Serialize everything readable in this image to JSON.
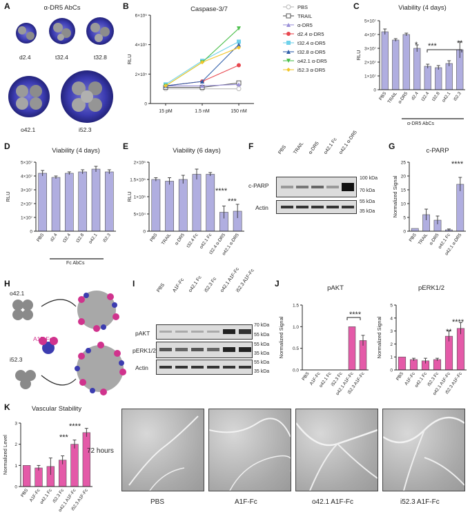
{
  "panels": {
    "A": {
      "letter": "A",
      "title": "α-DR5 AbCs",
      "labels": [
        "d2.4",
        "t32.4",
        "t32.8",
        "o42.1",
        "i52.3"
      ]
    },
    "B": {
      "letter": "B"
    },
    "C": {
      "letter": "C",
      "group_label": "α-DR5 AbCs",
      "sig_star1": "*",
      "sig_bracket": "***",
      "sig_last": "**"
    },
    "D": {
      "letter": "D",
      "group_label": "Fc AbCs"
    },
    "E": {
      "letter": "E",
      "sig1": "****",
      "sig2": "***"
    },
    "F": {
      "letter": "F",
      "lanes": [
        "PBS",
        "TRAIL",
        "α-DR5",
        "o42.1 Fc",
        "o42.1 α-DR5"
      ],
      "rows": [
        "c-PARP",
        "Actin"
      ],
      "markers": [
        "100 kDa",
        "70 kDa",
        "55 kDa",
        "35 kDa"
      ]
    },
    "G": {
      "letter": "G",
      "sig": "****"
    },
    "H": {
      "letter": "H",
      "labels": [
        "o42.1",
        "A1F-Fc",
        "i52.3"
      ]
    },
    "I": {
      "letter": "I",
      "lanes": [
        "PBS",
        "A1F-Fc",
        "o42.1 Fc",
        "i52.3 Fc",
        "o42.1 A1F-Fc",
        "i52.3 A1F-Fc"
      ],
      "rows": [
        "pAKT",
        "pERK1/2",
        "Actin"
      ],
      "markers": [
        "70 kDa",
        "55 kDa",
        "55 kDa",
        "35 kDa",
        "55 kDa",
        "35 kDa"
      ]
    },
    "J": {
      "letter": "J",
      "sig_akt": "****",
      "sig_erk1": "**",
      "sig_erk2": "****"
    },
    "K": {
      "letter": "K",
      "sig1": "***",
      "sig2": "****",
      "time_label": "72 hours",
      "images": [
        "PBS",
        "A1F-Fc",
        "o42.1 A1F-Fc",
        "i52.3 A1F-Fc"
      ]
    }
  },
  "colors": {
    "purple_bar": "#b0aee0",
    "pink_bar": "#e45aa8",
    "dark": "#222222"
  },
  "chart_data": [
    {
      "panel": "B",
      "type": "line",
      "title": "Caspase-3/7",
      "xlabel": "",
      "ylabel": "RLU",
      "categories": [
        "15 pM",
        "1.5 nM",
        "150 nM"
      ],
      "yticks": [
        "0",
        "2×10⁵",
        "4×10⁵",
        "6×10⁵"
      ],
      "ylim": [
        0,
        600000
      ],
      "series": [
        {
          "name": "PBS",
          "color": "#b9b9b9",
          "marker": "circle-open",
          "values": [
            100000,
            100000,
            100000
          ]
        },
        {
          "name": "TRAIL",
          "color": "#555555",
          "marker": "square-open",
          "values": [
            110000,
            110000,
            140000
          ]
        },
        {
          "name": "α-DR5",
          "color": "#9a90d8",
          "marker": "triangle",
          "values": [
            120000,
            120000,
            130000
          ]
        },
        {
          "name": "d2.4 α-DR5",
          "color": "#e8474f",
          "marker": "circle",
          "values": [
            120000,
            150000,
            260000
          ]
        },
        {
          "name": "t32.4 α-DR5",
          "color": "#6fd1ea",
          "marker": "square",
          "values": [
            130000,
            290000,
            420000
          ]
        },
        {
          "name": "t32.8 α-DR5",
          "color": "#2f5ea9",
          "marker": "triangle",
          "values": [
            120000,
            150000,
            400000
          ]
        },
        {
          "name": "o42.1 α-DR5",
          "color": "#4cc04c",
          "marker": "triangle-down",
          "values": [
            120000,
            280000,
            510000
          ]
        },
        {
          "name": "i52.3 α-DR5",
          "color": "#f2c62b",
          "marker": "diamond",
          "values": [
            120000,
            280000,
            380000
          ]
        }
      ]
    },
    {
      "panel": "C",
      "type": "bar",
      "title": "Viability (4 days)",
      "ylabel": "RLU",
      "categories": [
        "PBS",
        "TRAIL",
        "α-DR5",
        "d2.4",
        "t32.4",
        "t32.8",
        "o42.1",
        "i52.3"
      ],
      "values": [
        42000000.0,
        36000000.0,
        40000000.0,
        30000000.0,
        17000000.0,
        16000000.0,
        19000000.0,
        29000000.0
      ],
      "errors": [
        2000000.0,
        1000000.0,
        1000000.0,
        2500000.0,
        1500000.0,
        1500000.0,
        2000000.0,
        6000000.0
      ],
      "yticks": [
        "0",
        "1×10⁷",
        "2×10⁷",
        "3×10⁷",
        "4×10⁷",
        "5×10⁷"
      ],
      "ylim": [
        0,
        50000000.0
      ]
    },
    {
      "panel": "D",
      "type": "bar",
      "title": "Viability (4 days)",
      "ylabel": "RLU",
      "categories": [
        "PBS",
        "d2.4",
        "t32.4",
        "t32.8",
        "o42.1",
        "i52.3"
      ],
      "values": [
        42000000.0,
        39000000.0,
        42000000.0,
        43000000.0,
        45000000.0,
        43000000.0
      ],
      "errors": [
        2000000.0,
        1000000.0,
        1000000.0,
        1500000.0,
        2000000.0,
        1500000.0
      ],
      "yticks": [
        "0",
        "1×10⁷",
        "2×10⁷",
        "3×10⁷",
        "4×10⁷",
        "5×10⁷"
      ],
      "ylim": [
        0,
        50000000.0
      ]
    },
    {
      "panel": "E",
      "type": "bar",
      "title": "Viability (6 days)",
      "ylabel": "RLU",
      "categories": [
        "PBS",
        "TRAIL",
        "α-DR5",
        "t32.4 Fc",
        "o42.1 Fc",
        "t32.4 α-DR5",
        "o42.1 α-DR5"
      ],
      "values": [
        150000.0,
        145000.0,
        150000.0,
        165000.0,
        165000.0,
        55000.0,
        58000.0
      ],
      "errors": [
        5000.0,
        10000.0,
        12000.0,
        15000.0,
        5000.0,
        18000.0,
        20000.0
      ],
      "yticks": [
        "0",
        "5×10⁴",
        "1×10⁵",
        "1.5×10⁵",
        "2×10⁵"
      ],
      "ylim": [
        0,
        200000.0
      ]
    },
    {
      "panel": "G",
      "type": "bar",
      "title": "c-PARP",
      "ylabel": "Normalized Signal",
      "categories": [
        "PBS",
        "TRAIL",
        "α-DR5",
        "o42.1 Fc",
        "o42.1 α-DR5"
      ],
      "values": [
        1,
        6,
        4,
        0.5,
        17
      ],
      "errors": [
        0,
        2,
        1.5,
        0.3,
        2.5
      ],
      "yticks": [
        "0",
        "5",
        "10",
        "15",
        "20",
        "25"
      ],
      "ylim": [
        0,
        25
      ]
    },
    {
      "panel": "J1",
      "type": "bar",
      "title": "pAKT",
      "ylabel": "Normalized Signal",
      "categories": [
        "PBS",
        "A1F-Fc",
        "o42.1 Fc",
        "i52.3 Fc",
        "o42.1 A1F-Fc",
        "i52.3 A1F-Fc"
      ],
      "values": [
        0,
        0,
        0,
        0,
        1.0,
        0.68
      ],
      "errors": [
        0,
        0,
        0,
        0,
        0,
        0.12
      ],
      "yticks": [
        "0.0",
        "0.5",
        "1.0",
        "1.5"
      ],
      "ylim": [
        0,
        1.5
      ]
    },
    {
      "panel": "J2",
      "type": "bar",
      "title": "pERK1/2",
      "ylabel": "Normalized Signal",
      "categories": [
        "PBS",
        "A1F-Fc",
        "o42.1 Fc",
        "i52.3 Fc",
        "o42.1 A1F-Fc",
        "i52.3 A1F-Fc"
      ],
      "values": [
        1.0,
        0.8,
        0.7,
        0.8,
        2.6,
        3.2
      ],
      "errors": [
        0,
        0.1,
        0.2,
        0.1,
        0.4,
        0.45
      ],
      "yticks": [
        "0",
        "1",
        "2",
        "3",
        "4",
        "5"
      ],
      "ylim": [
        0,
        5
      ]
    },
    {
      "panel": "K",
      "type": "bar",
      "title": "Vascular Stability",
      "ylabel": "Normalized Level",
      "categories": [
        "PBS",
        "A1F-Fc",
        "o42.1 Fc",
        "i52.3 Fc",
        "o42.1 A1F-Fc",
        "i52.3 A1F-Fc"
      ],
      "values": [
        1.0,
        0.88,
        0.95,
        1.25,
        2.0,
        2.55
      ],
      "errors": [
        0,
        0.12,
        0.4,
        0.2,
        0.2,
        0.2
      ],
      "yticks": [
        "0",
        "1",
        "2",
        "3"
      ],
      "ylim": [
        0,
        3
      ]
    }
  ]
}
